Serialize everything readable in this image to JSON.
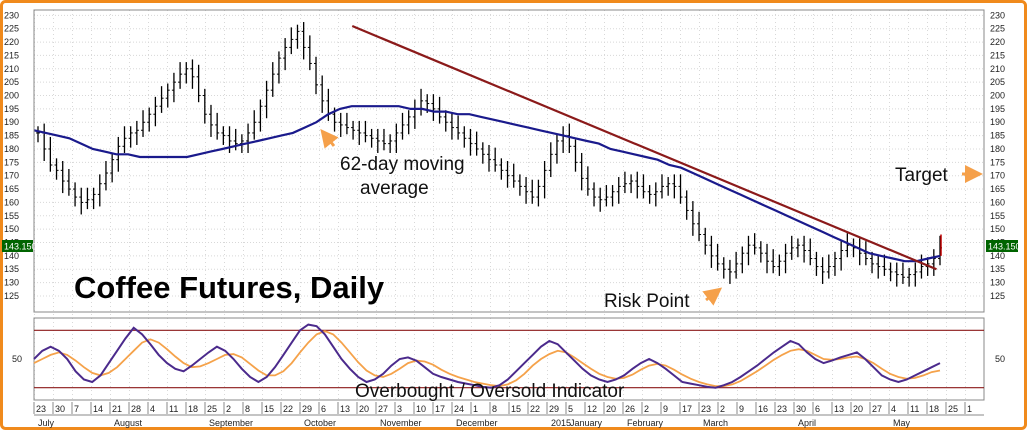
{
  "title": "Coffee Futures, Daily",
  "colors": {
    "frame": "#f08a1c",
    "price_bars": "#000000",
    "moving_average": "#1a1a8c",
    "trendline": "#8b1a1a",
    "oscillator_fast": "#4b2a8c",
    "oscillator_slow": "#f5a24a",
    "band_lines": "#8b1a1a",
    "grid": "#d8d8d8",
    "last_price_box": "#006400",
    "last_price_text": "#ffffff",
    "arrow": "#f5a04a"
  },
  "annotations": {
    "moving_average_line1": "62-day moving",
    "moving_average_line2": "average",
    "target": "Target",
    "risk_point": "Risk Point",
    "indicator": "Overbought / Oversold Indicator"
  },
  "last_price": "143.150",
  "chart_data": [
    {
      "type": "bar",
      "panel": "price",
      "title": "Coffee Futures, Daily",
      "ylim": [
        119,
        232
      ],
      "yticks": [
        125,
        130,
        135,
        140,
        145,
        150,
        155,
        160,
        165,
        170,
        175,
        180,
        185,
        190,
        195,
        200,
        205,
        210,
        215,
        220,
        225,
        230
      ],
      "grid": true,
      "x_tick_labels": [
        "23",
        "30",
        "7",
        "14",
        "21",
        "28",
        "4",
        "11",
        "18",
        "25",
        "2",
        "8",
        "15",
        "22",
        "29",
        "6",
        "13",
        "20",
        "27",
        "3",
        "10",
        "17",
        "24",
        "1",
        "8",
        "15",
        "22",
        "29",
        "5",
        "12",
        "20",
        "26",
        "2",
        "9",
        "17",
        "23",
        "2",
        "9",
        "16",
        "23",
        "30",
        "6",
        "13",
        "20",
        "27",
        "4",
        "11",
        "18",
        "25",
        "1"
      ],
      "x_month_labels": [
        "July",
        "August",
        "September",
        "October",
        "November",
        "December",
        "2015",
        "January",
        "February",
        "March",
        "April",
        "May"
      ],
      "series": [
        {
          "name": "",
          "description": "daily closing price (approximate)",
          "values": [
            186,
            180,
            174,
            172,
            168,
            165,
            162,
            160,
            161,
            163,
            167,
            171,
            176,
            181,
            184,
            186,
            187,
            190,
            193,
            196,
            199,
            202,
            205,
            208,
            210,
            207,
            200,
            193,
            189,
            186,
            185,
            183,
            182,
            183,
            186,
            190,
            196,
            202,
            208,
            214,
            218,
            221,
            224,
            218,
            212,
            204,
            198,
            193,
            190,
            189,
            188,
            187,
            186,
            185,
            184,
            183,
            182,
            183,
            186,
            189,
            192,
            195,
            198,
            197,
            195,
            192,
            190,
            188,
            186,
            184,
            182,
            180,
            178,
            176,
            174,
            172,
            170,
            168,
            166,
            164,
            162,
            166,
            172,
            178,
            183,
            185,
            181,
            175,
            169,
            165,
            162,
            161,
            162,
            164,
            166,
            167,
            168,
            166,
            164,
            163,
            164,
            166,
            167,
            166,
            162,
            157,
            152,
            148,
            144,
            140,
            137,
            135,
            134,
            137,
            141,
            144,
            143,
            141,
            138,
            136,
            138,
            141,
            143,
            144,
            142,
            139,
            136,
            134,
            136,
            139,
            142,
            144,
            143,
            141,
            139,
            137,
            136,
            135,
            134,
            133,
            132,
            133,
            134,
            136,
            137,
            139,
            143
          ]
        },
        {
          "name": "",
          "description": "62-day moving average (approximate)",
          "values": [
            187,
            186,
            185,
            184,
            182,
            180,
            179,
            178,
            178,
            177,
            177,
            177,
            177,
            177,
            178,
            179,
            180,
            181,
            182,
            183,
            184,
            185,
            186,
            188,
            190,
            193,
            195,
            196,
            196,
            196,
            196,
            196,
            195,
            195,
            194,
            194,
            193,
            193,
            192,
            191,
            190,
            189,
            188,
            187,
            186,
            185,
            184,
            183,
            182,
            180,
            179,
            178,
            177,
            176,
            174,
            173,
            171,
            169,
            167,
            165,
            163,
            161,
            159,
            157,
            155,
            153,
            151,
            149,
            147,
            145,
            143,
            141,
            140,
            139,
            138,
            138,
            139,
            140
          ]
        },
        {
          "name": "",
          "description": "downtrend line from the October high",
          "points": [
            [
              0.335,
              226
            ],
            [
              0.95,
              135
            ]
          ]
        }
      ]
    },
    {
      "type": "line",
      "panel": "indicator",
      "ylim": [
        0,
        100
      ],
      "yticks": [
        50
      ],
      "bands": [
        85,
        15
      ],
      "series": [
        {
          "name": "",
          "values": [
            50,
            60,
            65,
            60,
            50,
            35,
            25,
            22,
            30,
            45,
            60,
            75,
            88,
            80,
            68,
            55,
            45,
            38,
            35,
            42,
            50,
            58,
            65,
            60,
            50,
            38,
            28,
            22,
            28,
            40,
            55,
            70,
            85,
            92,
            90,
            80,
            65,
            50,
            38,
            28,
            22,
            25,
            32,
            42,
            50,
            52,
            48,
            40,
            32,
            28,
            25,
            22,
            20,
            18,
            16,
            15,
            18,
            25,
            35,
            45,
            55,
            65,
            72,
            68,
            58,
            48,
            38,
            30,
            25,
            22,
            25,
            30,
            38,
            45,
            50,
            45,
            38,
            30,
            22,
            20,
            18,
            16,
            15,
            18,
            22,
            28,
            35,
            42,
            50,
            58,
            65,
            72,
            68,
            58,
            50,
            45,
            48,
            52,
            55,
            58,
            50,
            40,
            30,
            25,
            22,
            25,
            30,
            35,
            40,
            45
          ]
        },
        {
          "name": "",
          "values": [
            45,
            50,
            55,
            58,
            55,
            48,
            40,
            33,
            30,
            33,
            40,
            50,
            60,
            70,
            74,
            70,
            62,
            53,
            45,
            40,
            41,
            45,
            50,
            55,
            56,
            52,
            44,
            36,
            30,
            30,
            35,
            45,
            58,
            70,
            80,
            84,
            80,
            70,
            58,
            46,
            36,
            30,
            28,
            32,
            38,
            45,
            48,
            47,
            43,
            37,
            32,
            28,
            25,
            22,
            20,
            18,
            17,
            19,
            24,
            32,
            42,
            50,
            56,
            60,
            58,
            52,
            45,
            38,
            32,
            28,
            26,
            27,
            31,
            37,
            42,
            44,
            42,
            37,
            31,
            26,
            22,
            19,
            17,
            17,
            19,
            23,
            29,
            35,
            42,
            49,
            55,
            60,
            62,
            60,
            55,
            50,
            49,
            50,
            52,
            53,
            50,
            45,
            38,
            32,
            28,
            26,
            27,
            30,
            34,
            36
          ]
        }
      ]
    }
  ]
}
